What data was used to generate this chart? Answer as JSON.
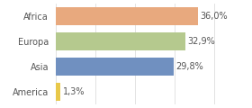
{
  "categories": [
    "Africa",
    "Europa",
    "Asia",
    "America"
  ],
  "values": [
    36.0,
    32.9,
    29.8,
    1.3
  ],
  "labels": [
    "36,0%",
    "32,9%",
    "29,8%",
    "1,3%"
  ],
  "bar_colors": [
    "#e8a97e",
    "#b5c98e",
    "#7090c0",
    "#e8c84a"
  ],
  "background_color": "#ffffff",
  "xlim": [
    0,
    42
  ],
  "bar_height": 0.72,
  "label_fontsize": 7,
  "tick_fontsize": 7
}
